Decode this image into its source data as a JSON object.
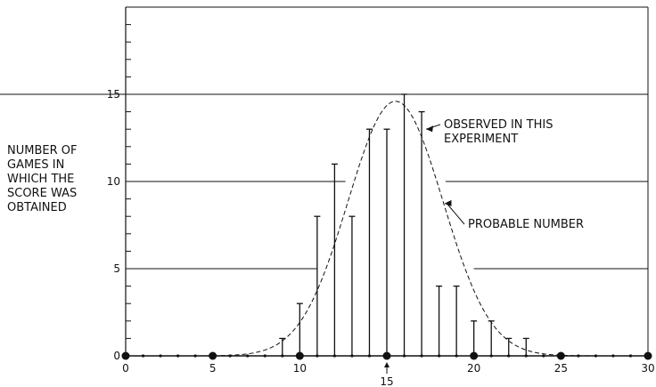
{
  "chart_data": {
    "type": "bar",
    "ylabel_lines": [
      "NUMBER OF",
      "GAMES IN",
      "WHICH THE",
      "SCORE WAS",
      "OBTAINED"
    ],
    "xlim": [
      0,
      30
    ],
    "ylim": [
      0,
      20
    ],
    "x_ticks": [
      0,
      5,
      10,
      15,
      20,
      25,
      30
    ],
    "y_ticks": [
      0,
      5,
      10,
      15
    ],
    "grid_levels": [
      5,
      10,
      15
    ],
    "marker_x": 15,
    "marker_label": "15",
    "series": [
      {
        "name": "OBSERVED IN THIS EXPERIMENT",
        "name_lines": [
          "OBSERVED IN THIS",
          "EXPERIMENT"
        ],
        "x": [
          9,
          10,
          11,
          12,
          13,
          14,
          15,
          16,
          17,
          18,
          19,
          20,
          21,
          22,
          23
        ],
        "values": [
          1,
          3,
          8,
          11,
          8,
          13,
          13,
          15,
          14,
          4,
          4,
          2,
          2,
          1,
          1
        ]
      },
      {
        "name": "PROBABLE NUMBER",
        "name_lines": [
          "PROBABLE NUMBER"
        ],
        "style": "dashed-curve",
        "curve": {
          "peak_x": 15.5,
          "peak_y": 14.6,
          "sigma": 2.73
        }
      }
    ],
    "colors": {
      "ink": "#111111",
      "background": "#ffffff"
    }
  }
}
